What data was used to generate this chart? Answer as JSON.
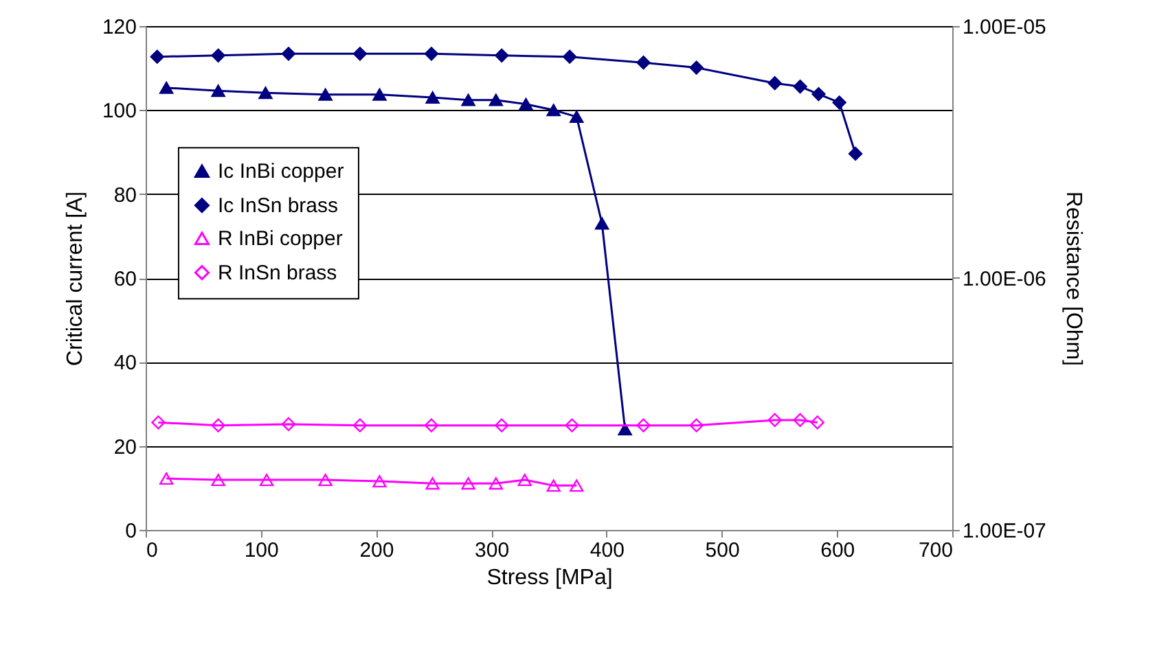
{
  "chart_data": {
    "type": "line",
    "xlabel": "Stress [MPa]",
    "ylabel": "Critical current [A]",
    "y2label": "Resistance [Ohm]",
    "xlim": [
      0,
      700
    ],
    "xticks": [
      0,
      100,
      200,
      300,
      400,
      500,
      600,
      700
    ],
    "ylim": [
      0,
      120
    ],
    "yticks": [
      0,
      20,
      40,
      60,
      80,
      100,
      120
    ],
    "y2lim": [
      1e-07,
      1e-05
    ],
    "y2ticks": [
      {
        "value": 1e-07,
        "label": "1.00E-07"
      },
      {
        "value": 1e-06,
        "label": "1.00E-06"
      },
      {
        "value": 1e-05,
        "label": "1.00E-05"
      }
    ],
    "log": "y2",
    "grid": "y",
    "legend": "left",
    "line_style": "solid",
    "series": [
      {
        "name": "Ic InBi copper",
        "color": "#000080",
        "marker": "triangle",
        "x": [
          18,
          63,
          104,
          156,
          203,
          249,
          280,
          304,
          330,
          354,
          374,
          396,
          416
        ],
        "values": [
          105.3,
          104.6,
          104.1,
          103.7,
          103.7,
          103.0,
          102.4,
          102.4,
          101.4,
          100.0,
          98.4,
          73,
          24
        ]
      },
      {
        "name": "Ic InSn brass",
        "color": "#000080",
        "marker": "diamond",
        "x": [
          10,
          63,
          124,
          186,
          248,
          309,
          368,
          432,
          478,
          546,
          568,
          584,
          602,
          616
        ],
        "values": [
          112.7,
          113.0,
          113.4,
          113.4,
          113.4,
          113.0,
          112.7,
          111.3,
          110.1,
          106.4,
          105.6,
          103.8,
          101.8,
          89.6
        ]
      },
      {
        "name": "R InBi copper",
        "color": "#ff00ff",
        "marker": "triangle",
        "axis": "y2",
        "x": [
          18,
          63,
          105,
          156,
          203,
          249,
          280,
          304,
          329,
          354,
          374
        ],
        "values": [
          1.6e-07,
          1.58e-07,
          1.58e-07,
          1.58e-07,
          1.56e-07,
          1.53e-07,
          1.53e-07,
          1.53e-07,
          1.58e-07,
          1.5e-07,
          1.5e-07
        ]
      },
      {
        "name": "R InSn brass",
        "color": "#ff00ff",
        "marker": "diamond",
        "axis": "y2",
        "x": [
          11,
          63,
          124,
          186,
          248,
          309,
          370,
          432,
          478,
          546,
          568,
          583
        ],
        "values": [
          2.67e-07,
          2.6e-07,
          2.63e-07,
          2.6e-07,
          2.6e-07,
          2.6e-07,
          2.6e-07,
          2.6e-07,
          2.6e-07,
          2.73e-07,
          2.73e-07,
          2.67e-07
        ]
      }
    ]
  }
}
